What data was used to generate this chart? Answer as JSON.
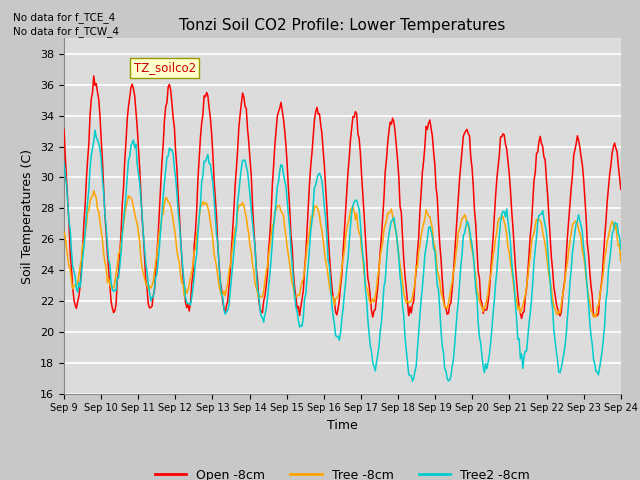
{
  "title": "Tonzi Soil CO2 Profile: Lower Temperatures",
  "xlabel": "Time",
  "ylabel": "Soil Temperatures (C)",
  "ylim": [
    16,
    39
  ],
  "yticks": [
    16,
    18,
    20,
    22,
    24,
    26,
    28,
    30,
    32,
    34,
    36,
    38
  ],
  "annotation1": "No data for f_TCE_4",
  "annotation2": "No data for f_TCW_4",
  "legend_label_box": "TZ_soilco2",
  "legend_entries": [
    "Open -8cm",
    "Tree -8cm",
    "Tree2 -8cm"
  ],
  "legend_colors": [
    "#ff0000",
    "#ffa500",
    "#00cccc"
  ]
}
